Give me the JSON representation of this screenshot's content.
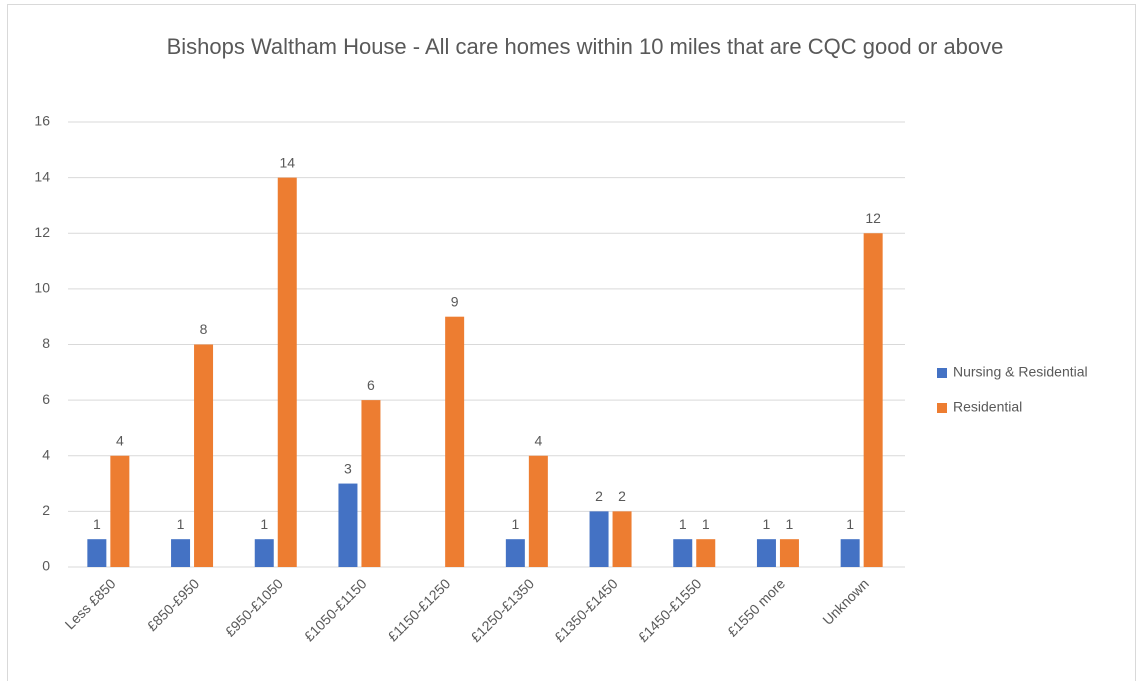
{
  "chart_data": {
    "type": "bar",
    "title": "Bishops Waltham House - All care homes within 10 miles that are CQC good or above",
    "categories": [
      "Less £850",
      "£850-£950",
      "£950-£1050",
      "£1050-£1150",
      "£1150-£1250",
      "£1250-£1350",
      "£1350-£1450",
      "£1450-£1550",
      "£1550 more",
      "Unknown"
    ],
    "series": [
      {
        "name": "Nursing & Residential",
        "color": "#4472c4",
        "values": [
          1,
          1,
          1,
          3,
          null,
          1,
          2,
          1,
          1,
          1
        ]
      },
      {
        "name": "Residential",
        "color": "#ed7d31",
        "values": [
          4,
          8,
          14,
          6,
          9,
          4,
          2,
          1,
          1,
          12
        ]
      }
    ],
    "ylim": [
      0,
      16
    ],
    "yticks": [
      0,
      2,
      4,
      6,
      8,
      10,
      12,
      14,
      16
    ],
    "grid": true,
    "legend": "right"
  }
}
